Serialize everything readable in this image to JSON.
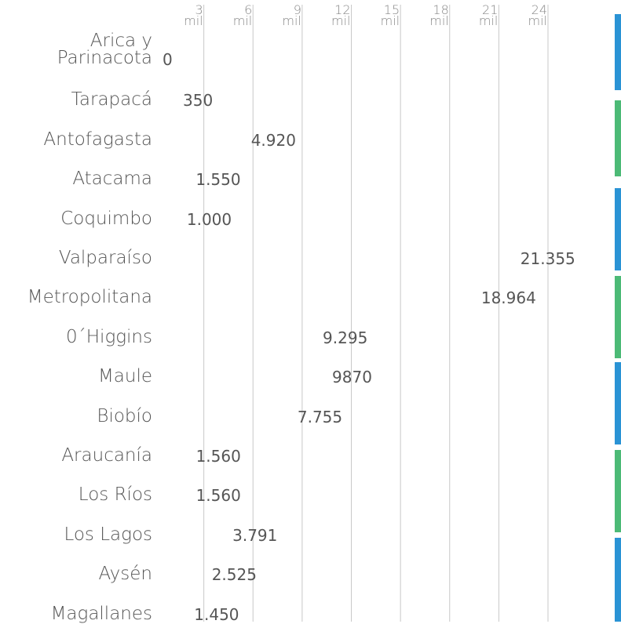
{
  "chart_data": {
    "type": "pictograph",
    "categories": [
      "Arica y\nParinacota",
      "Tarapacá",
      "Antofagasta",
      "Atacama",
      "Coquimbo",
      "Valparaíso",
      "Metropolitana",
      "0´Higgins",
      "Maule",
      "Biobío",
      "Araucanía",
      "Los Ríos",
      "Los Lagos",
      "Aysén",
      "Magallanes"
    ],
    "values": [
      0,
      350,
      4920,
      1550,
      1000,
      21355,
      18964,
      9295,
      9870,
      7755,
      1560,
      1560,
      3791,
      2525,
      1450
    ],
    "value_labels": [
      "0",
      "350",
      "4.920",
      "1.550",
      "1.000",
      "21.355",
      "18.964",
      "9.295",
      "9870",
      "7.755",
      "1.560",
      "1.560",
      "3.791",
      "2.525",
      "1.450"
    ],
    "color": "#4cba76",
    "xlim": [
      0,
      24000
    ],
    "xticks": [
      {
        "value": 3000,
        "label": "3 mil"
      },
      {
        "value": 6000,
        "label": "6 mil"
      },
      {
        "value": 9000,
        "label": "9 mil"
      },
      {
        "value": 12000,
        "label": "12 mil"
      },
      {
        "value": 15000,
        "label": "15 mil"
      },
      {
        "value": 18000,
        "label": "18 mil"
      },
      {
        "value": 21000,
        "label": "21 mil"
      },
      {
        "value": 24000,
        "label": "24 mil"
      }
    ],
    "grid": true
  }
}
